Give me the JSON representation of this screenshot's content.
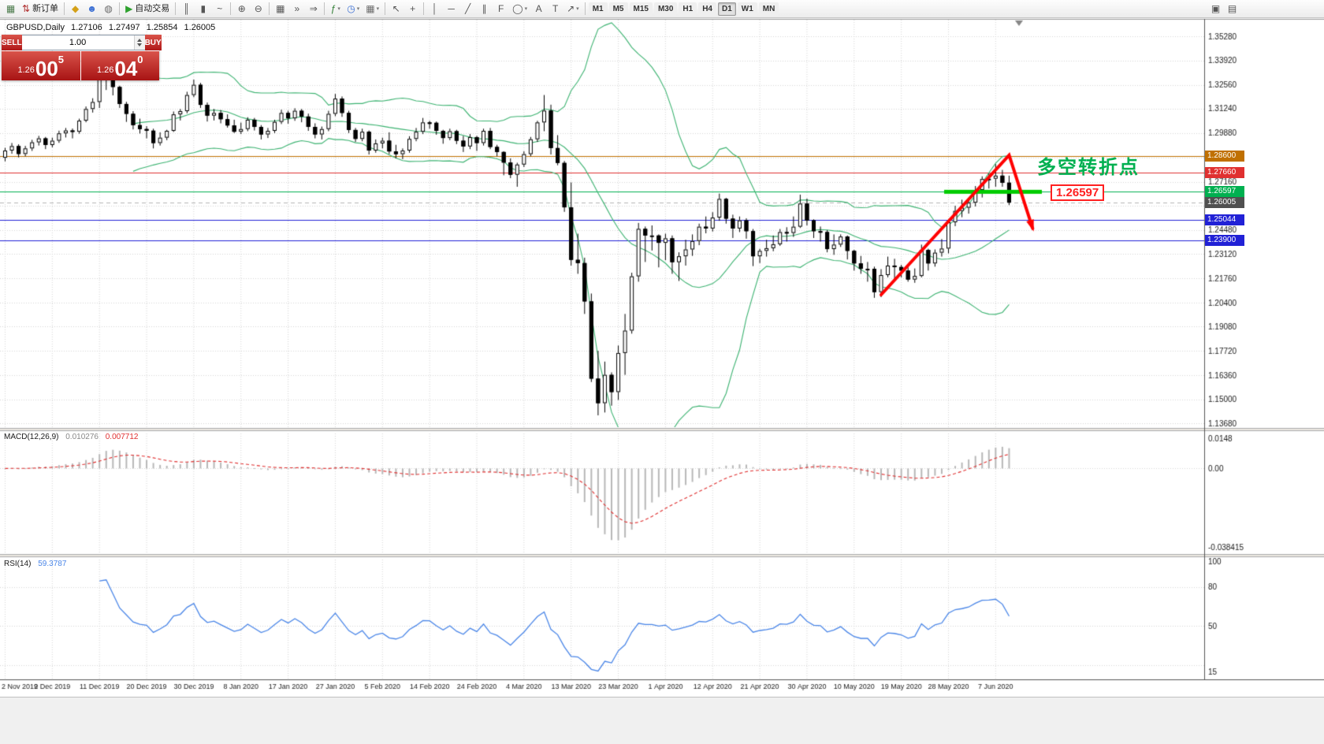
{
  "window": {
    "toolbar": {
      "groups": [
        {
          "items": [
            {
              "name": "new-chart",
              "glyph": "▦",
              "color": "#4a7a4a"
            },
            {
              "name": "new-order",
              "glyph": "⇅",
              "color": "#b03030",
              "label": "新订单"
            }
          ]
        },
        {
          "items": [
            {
              "name": "mql5-market",
              "glyph": "◆",
              "color": "#d4a017"
            },
            {
              "name": "community",
              "glyph": "☻",
              "color": "#3b6fd4"
            },
            {
              "name": "support",
              "glyph": "◍",
              "color": "#6a6a6a"
            }
          ]
        },
        {
          "items": [
            {
              "name": "autotrading",
              "glyph": "▶",
              "color": "#2ea12e",
              "label": "自动交易"
            }
          ]
        },
        {
          "items": [
            {
              "name": "bar-chart-mode",
              "glyph": "║",
              "color": "#555555"
            },
            {
              "name": "candlestick-mode",
              "glyph": "▮",
              "color": "#555555"
            },
            {
              "name": "line-chart-mode",
              "glyph": "~",
              "color": "#555555"
            }
          ]
        },
        {
          "items": [
            {
              "name": "zoom-in",
              "glyph": "⊕",
              "color": "#555555"
            },
            {
              "name": "zoom-out",
              "glyph": "⊖",
              "color": "#555555"
            }
          ]
        },
        {
          "items": [
            {
              "name": "tile-windows",
              "glyph": "▦",
              "color": "#555555"
            },
            {
              "name": "auto-scroll",
              "glyph": "»",
              "color": "#555555"
            },
            {
              "name": "chart-shift",
              "glyph": "⇒",
              "color": "#555555"
            }
          ]
        },
        {
          "items": [
            {
              "name": "indicators-menu",
              "glyph": "ƒ",
              "color": "#2e7d32",
              "caret": true
            },
            {
              "name": "periods-menu",
              "glyph": "◷",
              "color": "#3b6fd4",
              "caret": true
            },
            {
              "name": "templates-menu",
              "glyph": "▦",
              "color": "#6a6a6a",
              "caret": true
            }
          ]
        },
        {
          "items": [
            {
              "name": "cursor-tool",
              "glyph": "↖",
              "color": "#555555"
            },
            {
              "name": "crosshair-tool",
              "glyph": "+",
              "color": "#555555"
            }
          ]
        },
        {
          "items": [
            {
              "name": "vertical-line-tool",
              "glyph": "│",
              "color": "#555555"
            },
            {
              "name": "horizontal-line-tool",
              "glyph": "─",
              "color": "#555555"
            },
            {
              "name": "trendline-tool",
              "glyph": "╱",
              "color": "#555555"
            },
            {
              "name": "channel-tool",
              "glyph": "∥",
              "color": "#555555"
            },
            {
              "name": "fibonacci-tool",
              "glyph": "F",
              "color": "#555555"
            },
            {
              "name": "shapes-menu",
              "glyph": "◯",
              "color": "#555555",
              "caret": true
            },
            {
              "name": "text-tool",
              "glyph": "A",
              "color": "#555555"
            },
            {
              "name": "label-tool",
              "glyph": "T",
              "color": "#555555"
            },
            {
              "name": "arrows-menu",
              "glyph": "↗",
              "color": "#555555",
              "caret": true
            }
          ]
        }
      ],
      "timeframes": [
        "M1",
        "M5",
        "M15",
        "M30",
        "H1",
        "H4",
        "D1",
        "W1",
        "MN"
      ],
      "active_timeframe": "D1",
      "right_items": [
        {
          "name": "window-restore",
          "glyph": "▣",
          "color": "#555555"
        },
        {
          "name": "data-window",
          "glyph": "▤",
          "color": "#555555"
        }
      ]
    },
    "chart_header": {
      "symbol_period": "GBPUSD,Daily",
      "open": "1.27106",
      "high": "1.27497",
      "low": "1.25854",
      "close": "1.26005"
    },
    "one_click": {
      "sell_label": "SELL",
      "buy_label": "BUY",
      "lot": "1.00",
      "sell_price_base": "1.26",
      "sell_price_big": "00",
      "sell_price_sup": "5",
      "buy_price_base": "1.26",
      "buy_price_big": "04",
      "buy_price_sup": "0"
    }
  },
  "chart_data": {
    "type": "candlestick",
    "symbol": "GBPUSD",
    "period": "Daily",
    "price_axis_ticks": [
      "1.35280",
      "1.33920",
      "1.32560",
      "1.31240",
      "1.29880",
      "1.27160",
      "1.24480",
      "1.23120",
      "1.21760",
      "1.20400",
      "1.19080",
      "1.17720",
      "1.16360",
      "1.15000",
      "1.13680"
    ],
    "hidden_grid_prices": [
      1.2852,
      1.258
    ],
    "price_axis_max": 1.3528,
    "price_axis_min": 1.1368,
    "date_labels": [
      "2 Nov 2019",
      "2 Dec 2019",
      "11 Dec 2019",
      "20 Dec 2019",
      "30 Dec 2019",
      "8 Jan 2020",
      "17 Jan 2020",
      "27 Jan 2020",
      "5 Feb 2020",
      "14 Feb 2020",
      "24 Feb 2020",
      "4 Mar 2020",
      "13 Mar 2020",
      "23 Mar 2020",
      "1 Apr 2020",
      "12 Apr 2020",
      "21 Apr 2020",
      "30 Apr 2020",
      "10 May 2020",
      "19 May 2020",
      "28 May 2020",
      "7 Jun 2020"
    ],
    "bars_per_date_label": 7,
    "candles": [
      [
        1.285,
        1.2905,
        1.283,
        1.289
      ],
      [
        1.289,
        1.2932,
        1.2872,
        1.2915
      ],
      [
        1.2915,
        1.2925,
        1.2852,
        1.2871
      ],
      [
        1.2871,
        1.2916,
        1.2858,
        1.2902
      ],
      [
        1.2902,
        1.295,
        1.2888,
        1.2936
      ],
      [
        1.2936,
        1.2972,
        1.2918,
        1.2958
      ],
      [
        1.2958,
        1.2966,
        1.2898,
        1.2921
      ],
      [
        1.2921,
        1.2962,
        1.2908,
        1.2945
      ],
      [
        1.2945,
        1.3001,
        1.2933,
        1.2986
      ],
      [
        1.2986,
        1.3016,
        1.2963,
        1.3002
      ],
      [
        1.3002,
        1.3013,
        1.2958,
        1.2995
      ],
      [
        1.2995,
        1.3068,
        1.2984,
        1.3057
      ],
      [
        1.3057,
        1.3136,
        1.3048,
        1.3122
      ],
      [
        1.3122,
        1.3182,
        1.3102,
        1.3161
      ],
      [
        1.3161,
        1.335,
        1.3128,
        1.329
      ],
      [
        1.329,
        1.3342,
        1.3228,
        1.332
      ],
      [
        1.332,
        1.3332,
        1.3198,
        1.3245
      ],
      [
        1.3245,
        1.3252,
        1.3128,
        1.315
      ],
      [
        1.315,
        1.3162,
        1.305,
        1.3095
      ],
      [
        1.3095,
        1.311,
        1.3008,
        1.3032
      ],
      [
        1.3032,
        1.3068,
        1.2985,
        1.301
      ],
      [
        1.301,
        1.3026,
        1.2958,
        1.3001
      ],
      [
        1.3001,
        1.3012,
        1.2902,
        1.2932
      ],
      [
        1.2932,
        1.2992,
        1.2918,
        1.2962
      ],
      [
        1.2962,
        1.3006,
        1.2948,
        1.3
      ],
      [
        1.3,
        1.3108,
        1.2994,
        1.3092
      ],
      [
        1.3092,
        1.3122,
        1.3058,
        1.311
      ],
      [
        1.311,
        1.3218,
        1.3098,
        1.32
      ],
      [
        1.32,
        1.3286,
        1.3188,
        1.3257
      ],
      [
        1.3257,
        1.3268,
        1.3128,
        1.3145
      ],
      [
        1.3145,
        1.3158,
        1.3052,
        1.3085
      ],
      [
        1.3085,
        1.3122,
        1.3058,
        1.31
      ],
      [
        1.31,
        1.3116,
        1.3042,
        1.3065
      ],
      [
        1.3065,
        1.3092,
        1.3018,
        1.303
      ],
      [
        1.303,
        1.3062,
        1.2988,
        1.2995
      ],
      [
        1.2995,
        1.3046,
        1.2982,
        1.301
      ],
      [
        1.301,
        1.3076,
        1.2998,
        1.3062
      ],
      [
        1.3062,
        1.3072,
        1.3002,
        1.3022
      ],
      [
        1.3022,
        1.3032,
        1.2952,
        1.298
      ],
      [
        1.298,
        1.3016,
        1.296,
        1.3
      ],
      [
        1.3,
        1.3062,
        1.2988,
        1.305
      ],
      [
        1.305,
        1.3118,
        1.3038,
        1.31
      ],
      [
        1.31,
        1.3112,
        1.304,
        1.307
      ],
      [
        1.307,
        1.3126,
        1.3056,
        1.3112
      ],
      [
        1.3112,
        1.3122,
        1.3048,
        1.308
      ],
      [
        1.308,
        1.3096,
        1.3,
        1.3022
      ],
      [
        1.3022,
        1.3042,
        1.2958,
        1.298
      ],
      [
        1.298,
        1.3024,
        1.2952,
        1.301
      ],
      [
        1.301,
        1.3112,
        1.2998,
        1.3095
      ],
      [
        1.3095,
        1.3206,
        1.3082,
        1.318
      ],
      [
        1.318,
        1.3192,
        1.3078,
        1.31
      ],
      [
        1.31,
        1.3112,
        1.2988,
        1.3005
      ],
      [
        1.3005,
        1.3016,
        1.2938,
        1.2955
      ],
      [
        1.2955,
        1.3012,
        1.2942,
        1.2995
      ],
      [
        1.2995,
        1.3002,
        1.2868,
        1.289
      ],
      [
        1.289,
        1.2952,
        1.2878,
        1.293
      ],
      [
        1.293,
        1.2962,
        1.2902,
        1.2945
      ],
      [
        1.2945,
        1.2992,
        1.287,
        1.2885
      ],
      [
        1.2885,
        1.2922,
        1.2846,
        1.287
      ],
      [
        1.287,
        1.2902,
        1.2842,
        1.289
      ],
      [
        1.289,
        1.297,
        1.2878,
        1.2955
      ],
      [
        1.2955,
        1.3016,
        1.2942,
        1.2995
      ],
      [
        1.2995,
        1.3072,
        1.2982,
        1.3047
      ],
      [
        1.3047,
        1.3056,
        1.3012,
        1.3045
      ],
      [
        1.3045,
        1.3052,
        1.2978,
        1.3
      ],
      [
        1.3,
        1.3006,
        1.2928,
        1.296
      ],
      [
        1.296,
        1.3012,
        1.2948,
        1.2998
      ],
      [
        1.2998,
        1.3006,
        1.2926,
        1.2945
      ],
      [
        1.2945,
        1.2972,
        1.2882,
        1.2913
      ],
      [
        1.2913,
        1.2982,
        1.2898,
        1.2965
      ],
      [
        1.2965,
        1.2972,
        1.2888,
        1.2932
      ],
      [
        1.2932,
        1.3012,
        1.2918,
        1.3
      ],
      [
        1.3,
        1.3016,
        1.2898,
        1.291
      ],
      [
        1.291,
        1.2922,
        1.2858,
        1.2882
      ],
      [
        1.2882,
        1.2886,
        1.2752,
        1.2823
      ],
      [
        1.2823,
        1.2846,
        1.2736,
        1.2755
      ],
      [
        1.2755,
        1.2822,
        1.2688,
        1.2812
      ],
      [
        1.2812,
        1.2886,
        1.2798,
        1.287
      ],
      [
        1.287,
        1.2966,
        1.2858,
        1.2953
      ],
      [
        1.2953,
        1.3056,
        1.2938,
        1.3047
      ],
      [
        1.3047,
        1.32,
        1.2998,
        1.3113
      ],
      [
        1.3113,
        1.3146,
        1.2868,
        1.2904
      ],
      [
        1.2904,
        1.2976,
        1.2808,
        1.2821
      ],
      [
        1.2821,
        1.2832,
        1.2548,
        1.2573
      ],
      [
        1.2573,
        1.2712,
        1.2248,
        1.228
      ],
      [
        1.228,
        1.2426,
        1.2202,
        1.2262
      ],
      [
        1.2262,
        1.2292,
        1.1978,
        1.2048
      ],
      [
        1.2048,
        1.2092,
        1.1598,
        1.1617
      ],
      [
        1.1617,
        1.1772,
        1.1412,
        1.148
      ],
      [
        1.148,
        1.1712,
        1.1428,
        1.1638
      ],
      [
        1.1638,
        1.1652,
        1.1466,
        1.1542
      ],
      [
        1.1542,
        1.1802,
        1.1498,
        1.176
      ],
      [
        1.176,
        1.1978,
        1.1638,
        1.1885
      ],
      [
        1.1885,
        1.2208,
        1.1868,
        1.2188
      ],
      [
        1.2188,
        1.2486,
        1.2158,
        1.2453
      ],
      [
        1.2453,
        1.2466,
        1.2268,
        1.2416
      ],
      [
        1.2416,
        1.2472,
        1.2332,
        1.2416
      ],
      [
        1.2416,
        1.2422,
        1.2238,
        1.2375
      ],
      [
        1.2375,
        1.2426,
        1.2278,
        1.24
      ],
      [
        1.24,
        1.2416,
        1.2202,
        1.2267
      ],
      [
        1.2267,
        1.2322,
        1.2162,
        1.23
      ],
      [
        1.23,
        1.2392,
        1.2248,
        1.2338
      ],
      [
        1.2338,
        1.2422,
        1.2302,
        1.2385
      ],
      [
        1.2385,
        1.2482,
        1.2362,
        1.2465
      ],
      [
        1.2465,
        1.2522,
        1.2428,
        1.2455
      ],
      [
        1.2455,
        1.2546,
        1.2438,
        1.2516
      ],
      [
        1.2516,
        1.265,
        1.2498,
        1.262
      ],
      [
        1.262,
        1.2626,
        1.2482,
        1.251
      ],
      [
        1.251,
        1.2532,
        1.2402,
        1.2455
      ],
      [
        1.2455,
        1.2522,
        1.2435,
        1.25
      ],
      [
        1.25,
        1.2512,
        1.2398,
        1.244
      ],
      [
        1.244,
        1.2452,
        1.2245,
        1.23
      ],
      [
        1.23,
        1.2342,
        1.2262,
        1.233
      ],
      [
        1.233,
        1.2392,
        1.2298,
        1.2345
      ],
      [
        1.2345,
        1.2416,
        1.2328,
        1.2367
      ],
      [
        1.2367,
        1.2452,
        1.2358,
        1.2435
      ],
      [
        1.2435,
        1.2462,
        1.2382,
        1.243
      ],
      [
        1.243,
        1.2522,
        1.2408,
        1.2465
      ],
      [
        1.2465,
        1.2644,
        1.2458,
        1.2594
      ],
      [
        1.2594,
        1.2622,
        1.2472,
        1.25
      ],
      [
        1.25,
        1.2506,
        1.2402,
        1.244
      ],
      [
        1.244,
        1.2466,
        1.2382,
        1.2435
      ],
      [
        1.2435,
        1.2446,
        1.2322,
        1.234
      ],
      [
        1.234,
        1.2422,
        1.2308,
        1.2365
      ],
      [
        1.2365,
        1.2422,
        1.2352,
        1.241
      ],
      [
        1.241,
        1.2416,
        1.2282,
        1.233
      ],
      [
        1.233,
        1.2336,
        1.222,
        1.226
      ],
      [
        1.226,
        1.2302,
        1.2202,
        1.223
      ],
      [
        1.223,
        1.2268,
        1.2158,
        1.223
      ],
      [
        1.223,
        1.2242,
        1.2068,
        1.21
      ],
      [
        1.21,
        1.2228,
        1.2072,
        1.2195
      ],
      [
        1.2195,
        1.2298,
        1.2182,
        1.2248
      ],
      [
        1.2248,
        1.2286,
        1.2162,
        1.224
      ],
      [
        1.224,
        1.2252,
        1.2182,
        1.222
      ],
      [
        1.222,
        1.2238,
        1.2158,
        1.217
      ],
      [
        1.217,
        1.2232,
        1.2152,
        1.219
      ],
      [
        1.219,
        1.2365,
        1.2182,
        1.2335
      ],
      [
        1.2335,
        1.2342,
        1.222,
        1.226
      ],
      [
        1.226,
        1.2338,
        1.2242,
        1.232
      ],
      [
        1.232,
        1.2396,
        1.2298,
        1.2343
      ],
      [
        1.2343,
        1.2506,
        1.2316,
        1.249
      ],
      [
        1.249,
        1.2582,
        1.2468,
        1.2553
      ],
      [
        1.2553,
        1.2616,
        1.2518,
        1.2571
      ],
      [
        1.2571,
        1.2622,
        1.2538,
        1.2599
      ],
      [
        1.2599,
        1.2692,
        1.2578,
        1.267
      ],
      [
        1.267,
        1.2746,
        1.2628,
        1.2731
      ],
      [
        1.2731,
        1.2762,
        1.2678,
        1.2733
      ],
      [
        1.2733,
        1.2814,
        1.2688,
        1.275
      ],
      [
        1.275,
        1.2782,
        1.2688,
        1.271
      ],
      [
        1.27106,
        1.27497,
        1.25854,
        1.26005
      ]
    ],
    "bollinger": {
      "period": 20,
      "deviations": 2,
      "color": "#3CB371"
    },
    "hlines": [
      {
        "price": 1.286,
        "label": "1.28600",
        "color": "#C07000"
      },
      {
        "price": 1.2766,
        "label": "1.27660",
        "color": "#E03030"
      },
      {
        "price": 1.26597,
        "label": "1.26597",
        "color": "#00B050",
        "thick_segment": true
      },
      {
        "price": 1.26005,
        "label": "1.26005",
        "color": "#505050",
        "style": "bid"
      },
      {
        "price": 1.25044,
        "label": "1.25044",
        "color": "#2121D6"
      },
      {
        "price": 1.239,
        "label": "1.23900",
        "color": "#2121D6"
      }
    ],
    "level_callout": {
      "text": "1.26597",
      "color": "#FF2020"
    },
    "annotation": {
      "text": "多空转折点",
      "color": "#00B050"
    },
    "trend_arrow": {
      "color": "#FF0000",
      "points_bar_price": [
        [
          130,
          1.2085
        ],
        [
          149,
          1.2864
        ],
        [
          152.5,
          1.2455
        ]
      ]
    },
    "macd": {
      "label": "MACD(12,26,9)",
      "value_main": "0.010276",
      "value_signal": "0.007712",
      "axis_labels": [
        "0.0148",
        "0.00",
        "-0.038415"
      ],
      "axis_max": 0.0148,
      "axis_min": -0.038415,
      "histogram_color": "#b8b8b8",
      "signal_color": "#E03030"
    },
    "rsi": {
      "label": "RSI(14)",
      "value": "59.3787",
      "axis_labels": [
        "100",
        "80",
        "50",
        "15"
      ],
      "axis_values": [
        100,
        80,
        50,
        15
      ],
      "levels": [
        80,
        50,
        20
      ],
      "axis_max": 100,
      "axis_min": 15,
      "color": "#4a86e8"
    }
  }
}
